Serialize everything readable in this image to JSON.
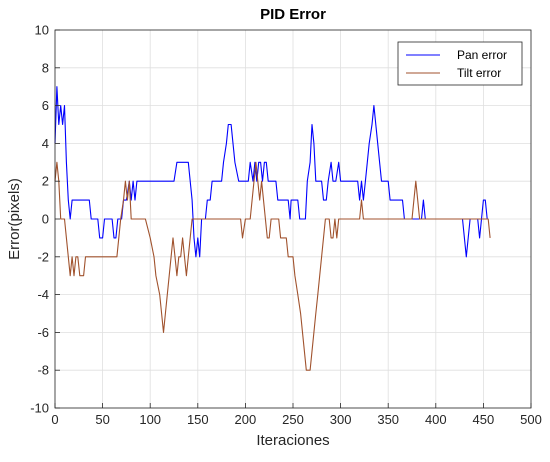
{
  "chart_data": {
    "type": "line",
    "title": "PID Error",
    "xlabel": "Iteraciones",
    "ylabel": "Error(pixels)",
    "xlim": [
      0,
      500
    ],
    "ylim": [
      -10,
      10
    ],
    "xticks": [
      "0",
      "50",
      "100",
      "150",
      "200",
      "250",
      "300",
      "350",
      "400",
      "450",
      "500"
    ],
    "yticks": [
      "-10",
      "-8",
      "-6",
      "-4",
      "-2",
      "0",
      "2",
      "4",
      "6",
      "8",
      "10"
    ],
    "grid": true,
    "legend": "top-right",
    "series": [
      {
        "name": "Pan error",
        "color": "#0000ff",
        "points": [
          [
            0,
            4
          ],
          [
            2,
            7
          ],
          [
            4,
            5
          ],
          [
            6,
            6
          ],
          [
            8,
            5
          ],
          [
            10,
            6
          ],
          [
            12,
            3
          ],
          [
            14,
            1
          ],
          [
            16,
            0
          ],
          [
            18,
            1
          ],
          [
            20,
            1
          ],
          [
            30,
            1
          ],
          [
            36,
            1
          ],
          [
            38,
            0
          ],
          [
            45,
            0
          ],
          [
            47,
            -1
          ],
          [
            50,
            -1
          ],
          [
            52,
            0
          ],
          [
            60,
            0
          ],
          [
            62,
            -1
          ],
          [
            64,
            -1
          ],
          [
            66,
            0
          ],
          [
            70,
            0
          ],
          [
            72,
            1
          ],
          [
            75,
            1
          ],
          [
            78,
            2
          ],
          [
            80,
            1
          ],
          [
            82,
            2
          ],
          [
            84,
            1
          ],
          [
            86,
            2
          ],
          [
            100,
            2
          ],
          [
            110,
            2
          ],
          [
            125,
            2
          ],
          [
            128,
            3
          ],
          [
            140,
            3
          ],
          [
            142,
            2
          ],
          [
            144,
            1
          ],
          [
            146,
            -1
          ],
          [
            148,
            -2
          ],
          [
            150,
            -1
          ],
          [
            152,
            -2
          ],
          [
            154,
            0
          ],
          [
            158,
            0
          ],
          [
            160,
            1
          ],
          [
            163,
            1
          ],
          [
            165,
            2
          ],
          [
            175,
            2
          ],
          [
            177,
            3
          ],
          [
            180,
            4
          ],
          [
            182,
            5
          ],
          [
            185,
            5
          ],
          [
            187,
            4
          ],
          [
            189,
            3
          ],
          [
            193,
            2
          ],
          [
            197,
            2
          ],
          [
            203,
            2
          ],
          [
            205,
            3
          ],
          [
            208,
            2
          ],
          [
            210,
            3
          ],
          [
            212,
            2
          ],
          [
            214,
            3
          ],
          [
            216,
            3
          ],
          [
            218,
            2
          ],
          [
            220,
            3
          ],
          [
            222,
            3
          ],
          [
            224,
            2
          ],
          [
            232,
            2
          ],
          [
            234,
            1
          ],
          [
            245,
            1
          ],
          [
            247,
            0
          ],
          [
            248,
            1
          ],
          [
            250,
            1
          ],
          [
            255,
            1
          ],
          [
            257,
            0
          ],
          [
            263,
            0
          ],
          [
            265,
            2
          ],
          [
            268,
            3
          ],
          [
            270,
            5
          ],
          [
            272,
            4
          ],
          [
            274,
            2
          ],
          [
            280,
            2
          ],
          [
            282,
            1
          ],
          [
            285,
            1
          ],
          [
            287,
            2
          ],
          [
            290,
            3
          ],
          [
            292,
            2
          ],
          [
            295,
            2
          ],
          [
            298,
            3
          ],
          [
            300,
            2
          ],
          [
            318,
            2
          ],
          [
            320,
            1
          ],
          [
            322,
            2
          ],
          [
            324,
            1
          ],
          [
            326,
            2
          ],
          [
            328,
            3
          ],
          [
            330,
            4
          ],
          [
            333,
            5
          ],
          [
            335,
            6
          ],
          [
            337,
            5
          ],
          [
            339,
            4
          ],
          [
            341,
            3
          ],
          [
            343,
            2
          ],
          [
            350,
            2
          ],
          [
            352,
            1
          ],
          [
            365,
            1
          ],
          [
            367,
            0
          ],
          [
            385,
            0
          ],
          [
            387,
            1
          ],
          [
            389,
            0
          ],
          [
            410,
            0
          ],
          [
            428,
            0
          ],
          [
            430,
            -1
          ],
          [
            432,
            -2
          ],
          [
            434,
            -1
          ],
          [
            436,
            0
          ],
          [
            444,
            0
          ],
          [
            446,
            -1
          ],
          [
            448,
            0
          ],
          [
            450,
            1
          ],
          [
            452,
            1
          ],
          [
            454,
            0
          ]
        ]
      },
      {
        "name": "Tilt error",
        "color": "#a0522d",
        "points": [
          [
            0,
            2
          ],
          [
            2,
            3
          ],
          [
            4,
            2
          ],
          [
            6,
            0
          ],
          [
            10,
            0
          ],
          [
            12,
            -1
          ],
          [
            14,
            -2
          ],
          [
            16,
            -3
          ],
          [
            18,
            -2
          ],
          [
            20,
            -3
          ],
          [
            22,
            -2
          ],
          [
            24,
            -2
          ],
          [
            26,
            -3
          ],
          [
            30,
            -3
          ],
          [
            32,
            -2
          ],
          [
            40,
            -2
          ],
          [
            50,
            -2
          ],
          [
            65,
            -2
          ],
          [
            67,
            -1
          ],
          [
            69,
            0
          ],
          [
            72,
            1
          ],
          [
            74,
            2
          ],
          [
            76,
            1
          ],
          [
            78,
            2
          ],
          [
            80,
            0
          ],
          [
            85,
            0
          ],
          [
            95,
            0
          ],
          [
            100,
            -1
          ],
          [
            104,
            -2
          ],
          [
            106,
            -3
          ],
          [
            110,
            -4
          ],
          [
            112,
            -5
          ],
          [
            114,
            -6
          ],
          [
            116,
            -5
          ],
          [
            118,
            -4
          ],
          [
            120,
            -3
          ],
          [
            122,
            -2
          ],
          [
            124,
            -1
          ],
          [
            126,
            -2
          ],
          [
            128,
            -3
          ],
          [
            130,
            -2
          ],
          [
            132,
            -2
          ],
          [
            134,
            -1
          ],
          [
            136,
            -2
          ],
          [
            138,
            -3
          ],
          [
            140,
            -2
          ],
          [
            142,
            -1
          ],
          [
            144,
            0
          ],
          [
            160,
            0
          ],
          [
            180,
            0
          ],
          [
            195,
            0
          ],
          [
            197,
            -1
          ],
          [
            200,
            0
          ],
          [
            205,
            0
          ],
          [
            207,
            1
          ],
          [
            209,
            2
          ],
          [
            211,
            3
          ],
          [
            213,
            2
          ],
          [
            215,
            1
          ],
          [
            217,
            2
          ],
          [
            219,
            1
          ],
          [
            221,
            0
          ],
          [
            223,
            -1
          ],
          [
            225,
            -1
          ],
          [
            227,
            0
          ],
          [
            235,
            0
          ],
          [
            237,
            -1
          ],
          [
            243,
            -1
          ],
          [
            245,
            -2
          ],
          [
            250,
            -2
          ],
          [
            252,
            -3
          ],
          [
            255,
            -4
          ],
          [
            258,
            -5
          ],
          [
            260,
            -6
          ],
          [
            262,
            -7
          ],
          [
            264,
            -8
          ],
          [
            268,
            -8
          ],
          [
            270,
            -7
          ],
          [
            272,
            -6
          ],
          [
            274,
            -5
          ],
          [
            276,
            -4
          ],
          [
            278,
            -3
          ],
          [
            280,
            -2
          ],
          [
            282,
            -1
          ],
          [
            284,
            0
          ],
          [
            288,
            0
          ],
          [
            290,
            -1
          ],
          [
            292,
            -1
          ],
          [
            294,
            0
          ],
          [
            296,
            -1
          ],
          [
            298,
            0
          ],
          [
            300,
            0
          ],
          [
            320,
            0
          ],
          [
            322,
            1
          ],
          [
            324,
            0
          ],
          [
            340,
            0
          ],
          [
            360,
            0
          ],
          [
            375,
            0
          ],
          [
            377,
            1
          ],
          [
            379,
            2
          ],
          [
            381,
            1
          ],
          [
            383,
            0
          ],
          [
            390,
            0
          ],
          [
            410,
            0
          ],
          [
            430,
            0
          ],
          [
            455,
            0
          ],
          [
            457,
            -1
          ]
        ]
      }
    ]
  }
}
